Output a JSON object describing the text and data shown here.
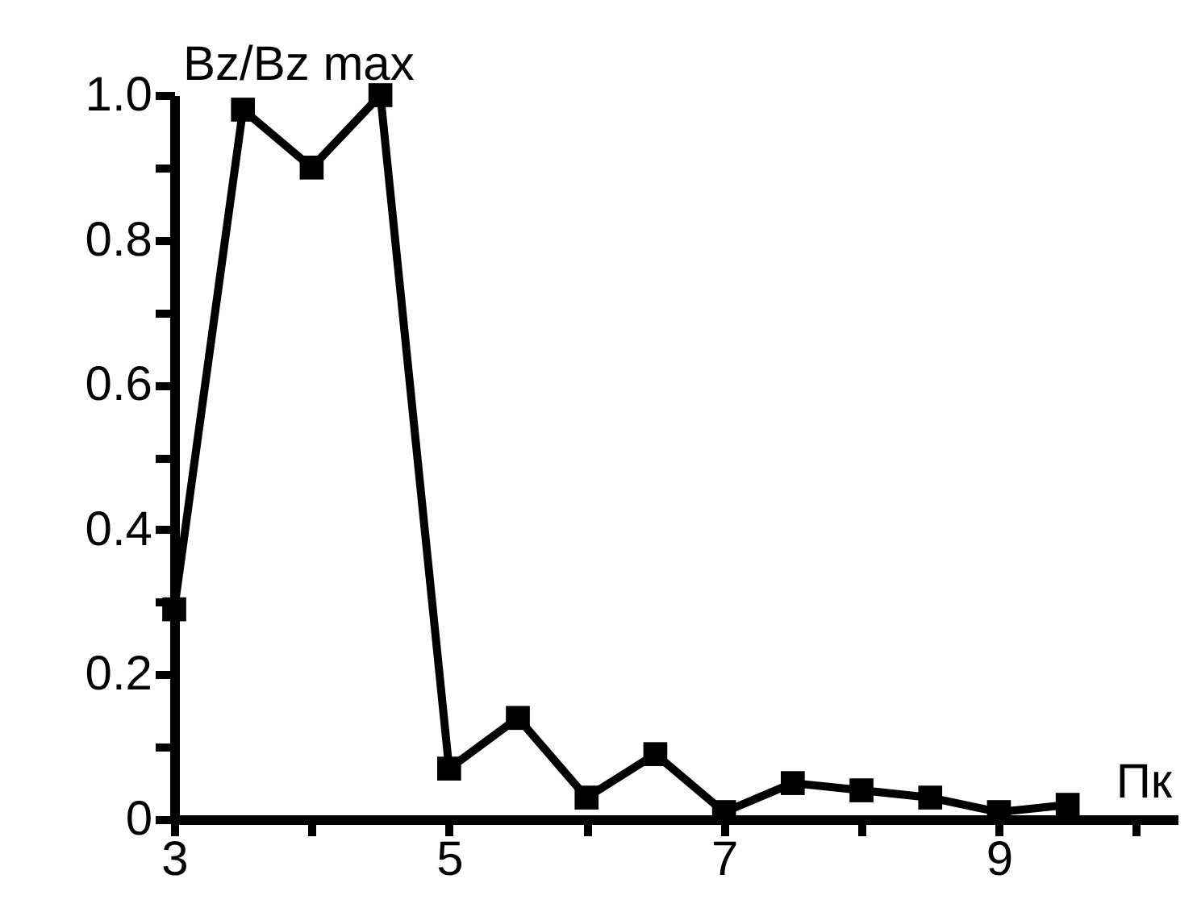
{
  "chart_data": {
    "type": "line",
    "xlabel": "Пк",
    "ylabel": "Bz/Bz max",
    "x": [
      3,
      3.5,
      4,
      4.5,
      5,
      5.5,
      6,
      6.5,
      7,
      7.5,
      8,
      8.5,
      9,
      9.5
    ],
    "series": [
      {
        "color": "#000000",
        "values": [
          0.29,
          0.98,
          0.9,
          1.0,
          0.07,
          0.14,
          0.03,
          0.09,
          0.01,
          0.05,
          0.04,
          0.03,
          0.01,
          0.02
        ]
      }
    ],
    "xlim": [
      3,
      10.3
    ],
    "xticks": [
      3,
      {
        "value": 4,
        "label": null
      },
      5,
      {
        "value": 6,
        "label": null
      },
      7,
      {
        "value": 8,
        "label": null
      },
      9,
      {
        "value": 10,
        "label": null
      }
    ],
    "ylim": [
      0,
      1.0
    ],
    "yticks": [
      0,
      {
        "value": 0.1,
        "label": null
      },
      {
        "value": 0.2,
        "label": "0.2"
      },
      {
        "value": 0.3,
        "label": null
      },
      {
        "value": 0.4,
        "label": "0.4"
      },
      {
        "value": 0.5,
        "label": null
      },
      {
        "value": 0.6,
        "label": "0.6"
      },
      {
        "value": 0.7,
        "label": null
      },
      {
        "value": 0.8,
        "label": "0.8"
      },
      {
        "value": 0.9,
        "label": null
      },
      {
        "value": 1.0,
        "label": "1.0"
      }
    ],
    "marker": "square",
    "line_style": "solid",
    "grid": false,
    "legend": false
  }
}
